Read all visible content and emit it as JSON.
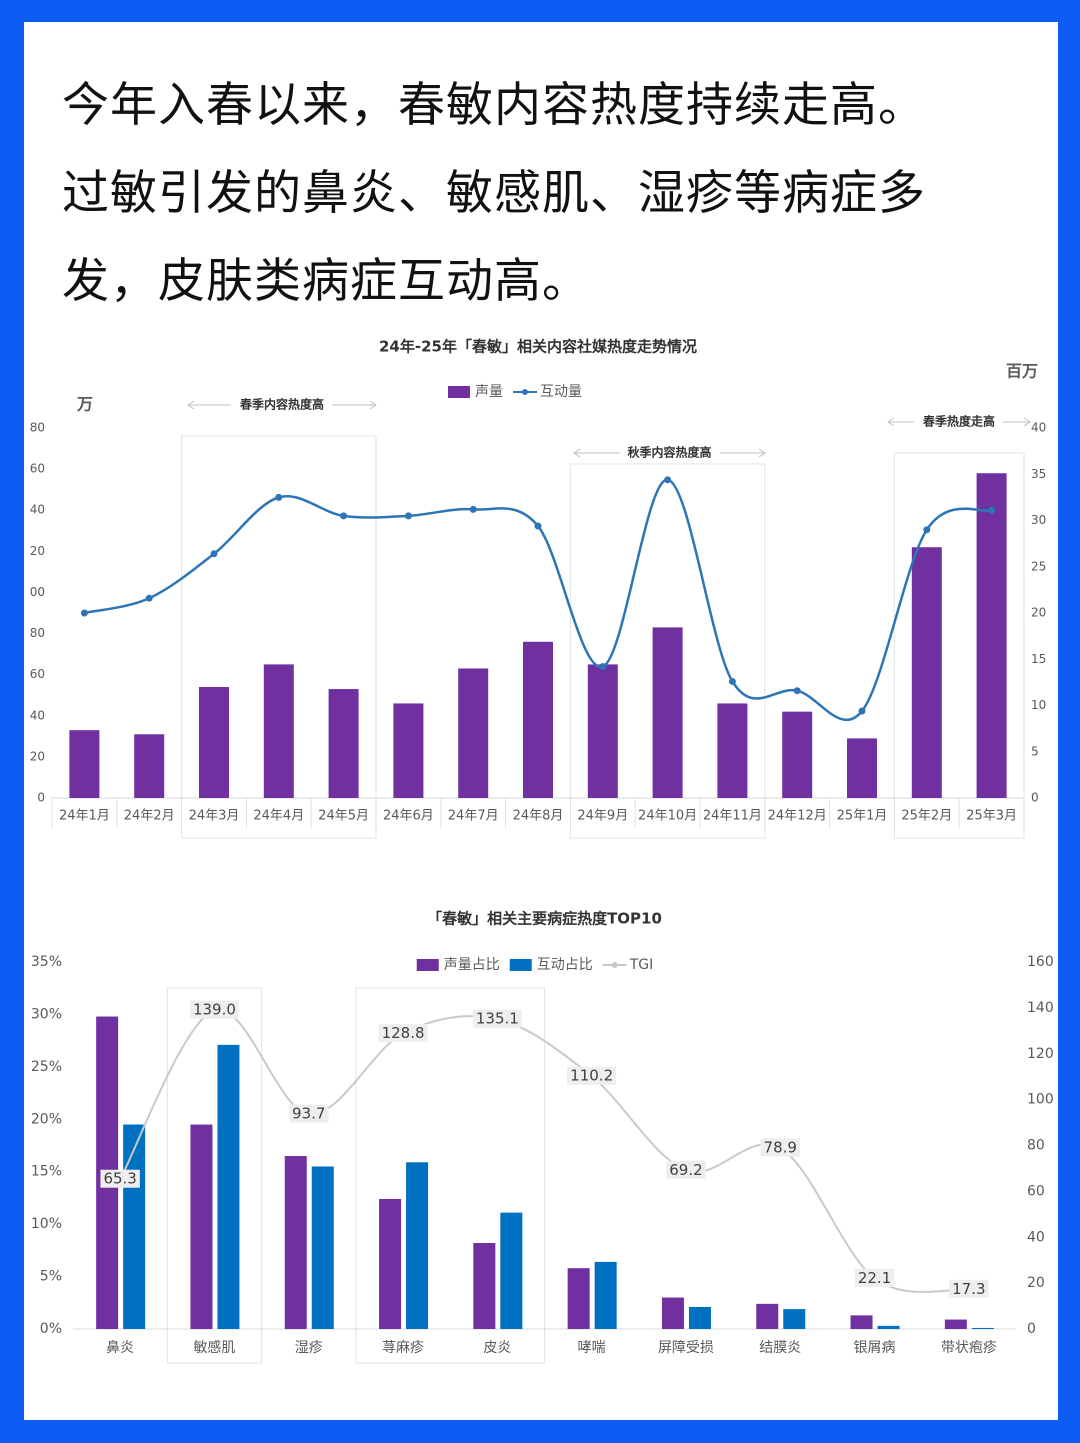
{
  "heading": {
    "lines": [
      "今年入春以来，春敏内容热度持续走高。",
      "过敏引发的鼻炎、敏感肌、湿疹等病症多",
      "发，皮肤类病症互动高。"
    ]
  },
  "chart_data": [
    {
      "type": "combo",
      "title": "24年-25年「春敏」相关内容社媒热度走势情况",
      "ylabel": "万",
      "y2label": "百万",
      "categories": [
        "24年1月",
        "24年2月",
        "24年3月",
        "24年4月",
        "24年5月",
        "24年6月",
        "24年7月",
        "24年8月",
        "24年9月",
        "24年10月",
        "24年11月",
        "24年12月",
        "25年1月",
        "25年2月",
        "25年3月"
      ],
      "series": [
        {
          "name": "声量",
          "kind": "bar",
          "color": "#7030a0",
          "values": [
            33,
            31,
            54,
            65,
            53,
            46,
            63,
            76,
            65,
            83,
            46,
            42,
            29,
            122,
            158
          ]
        },
        {
          "name": "互动量",
          "kind": "line",
          "axis": "y2",
          "color": "#2e75b6",
          "values": [
            20,
            21.6,
            26.4,
            32.5,
            30.5,
            30.5,
            31.2,
            29.4,
            14.2,
            34.4,
            12.6,
            11.6,
            9.4,
            29,
            31.1
          ]
        }
      ],
      "ylim": [
        0,
        180
      ],
      "yticks": [
        0,
        20,
        40,
        60,
        80,
        {
          "value": 100,
          "label": "00"
        },
        {
          "value": 120,
          "label": "20"
        },
        {
          "value": 140,
          "label": "40"
        },
        {
          "value": 160,
          "label": "60"
        },
        {
          "value": 180,
          "label": "80"
        }
      ],
      "y2lim": [
        0,
        40
      ],
      "y2ticks": [
        0,
        5,
        10,
        15,
        20,
        25,
        30,
        35,
        40
      ],
      "annotations": [
        {
          "text": "春季内容热度高"
        },
        {
          "text": "秋季内容热度高"
        },
        {
          "text": "春季热度走高"
        }
      ]
    },
    {
      "type": "combo",
      "title": "「春敏」相关主要病症热度TOP10",
      "categories": [
        "鼻炎",
        "敏感肌",
        "湿疹",
        "荨麻疹",
        "皮炎",
        "哮喘",
        "屏障受损",
        "结膜炎",
        "银屑病",
        "带状疱疹"
      ],
      "series": [
        {
          "name": "声量占比",
          "kind": "bar",
          "color": "#7030a0",
          "values": [
            29.8,
            19.5,
            16.5,
            12.4,
            8.2,
            5.8,
            3.0,
            2.4,
            1.3,
            0.9
          ]
        },
        {
          "name": "互动占比",
          "kind": "bar",
          "color": "#0070c0",
          "values": [
            19.5,
            27.1,
            15.5,
            15.9,
            11.1,
            6.4,
            2.1,
            1.9,
            0.3,
            0.1
          ]
        },
        {
          "name": "TGI",
          "kind": "line",
          "axis": "y2",
          "color": "#c9c9c9",
          "values": [
            65.3,
            139,
            93.7,
            128.8,
            135.1,
            110.2,
            69.2,
            78.9,
            22.1,
            17.3
          ],
          "value_labels": [
            "65.3",
            "139.0",
            "93.7",
            "128.8",
            "135.1",
            "110.2",
            "69.2",
            "78.9",
            "22.1",
            "17.3"
          ]
        }
      ],
      "ylim": [
        0,
        35
      ],
      "yticks": [
        {
          "value": 0,
          "label": "0%"
        },
        {
          "value": 5,
          "label": "5%"
        },
        {
          "value": 10,
          "label": "10%"
        },
        {
          "value": 15,
          "label": "15%"
        },
        {
          "value": 20,
          "label": "20%"
        },
        {
          "value": 25,
          "label": "25%"
        },
        {
          "value": 30,
          "label": "30%"
        },
        {
          "value": 35,
          "label": "35%"
        }
      ],
      "y2lim": [
        0,
        160
      ],
      "y2ticks": [
        0,
        20,
        40,
        60,
        80,
        100,
        120,
        140,
        160
      ]
    }
  ]
}
